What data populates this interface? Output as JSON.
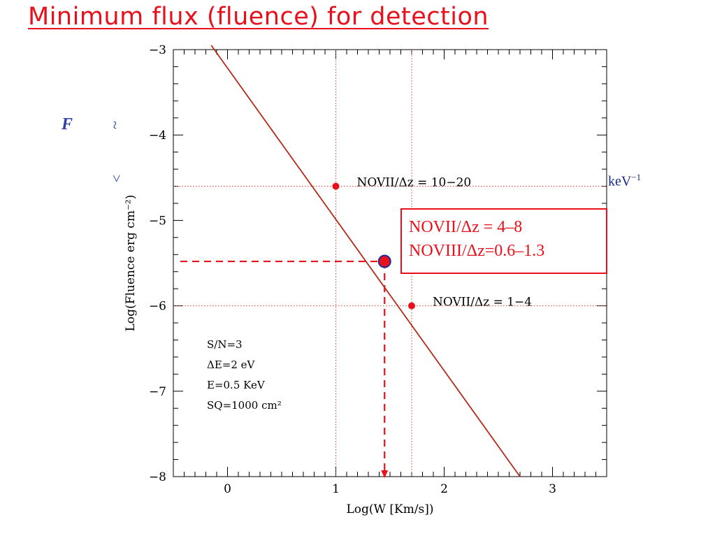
{
  "title": "Minimum flux (fluence) for detection",
  "background_fragments": {
    "left_symbol": "F",
    "left_squiggle_top": "~",
    "left_arrow": ">",
    "right_unit": "keV"
  },
  "callout": {
    "line1": "NOVII/Δz =  4–8",
    "line2": "NOVIII/Δz=0.6–1.3"
  },
  "chart_data": {
    "type": "line",
    "xlabel": "Log(W [Km/s])",
    "ylabel": "Log(Fluence erg cm⁻²)",
    "xlim": [
      -0.5,
      3.5
    ],
    "ylim": [
      -8,
      -3
    ],
    "x_ticks": [
      0,
      1,
      2,
      3
    ],
    "y_ticks": [
      -3,
      -4,
      -5,
      -6,
      -7,
      -8
    ],
    "x_tick_labels": [
      "0",
      "1",
      "2",
      "3"
    ],
    "y_tick_labels": [
      "−3",
      "−4",
      "−5",
      "−6",
      "−7",
      "−8"
    ],
    "grid": false,
    "series": [
      {
        "x": [
          -0.15,
          2.7
        ],
        "y": [
          -2.95,
          -8.0
        ],
        "color": "#b52a1a"
      }
    ],
    "reference_lines": {
      "vertical": [
        1.0,
        1.7
      ],
      "horizontal": [
        -4.6,
        -6.0
      ],
      "color": "#d9413a"
    },
    "points": [
      {
        "x": 1.0,
        "y": -4.6,
        "label": "NOVII/Δz  =  10−20"
      },
      {
        "x": 1.7,
        "y": -6.0,
        "label": "NOVII/Δz  =  1−4"
      }
    ],
    "highlight_point": {
      "x": 1.45,
      "y": -5.48,
      "fill": "#e8101a",
      "stroke": "#1a2a9a"
    },
    "annotations": [
      "S/N=3",
      "ΔE=2 eV",
      "E=0.5 KeV",
      "SQ=1000 cm²"
    ],
    "colors": {
      "line": "#b52a1a",
      "accent": "#e8101a",
      "frame": "#000000"
    }
  }
}
